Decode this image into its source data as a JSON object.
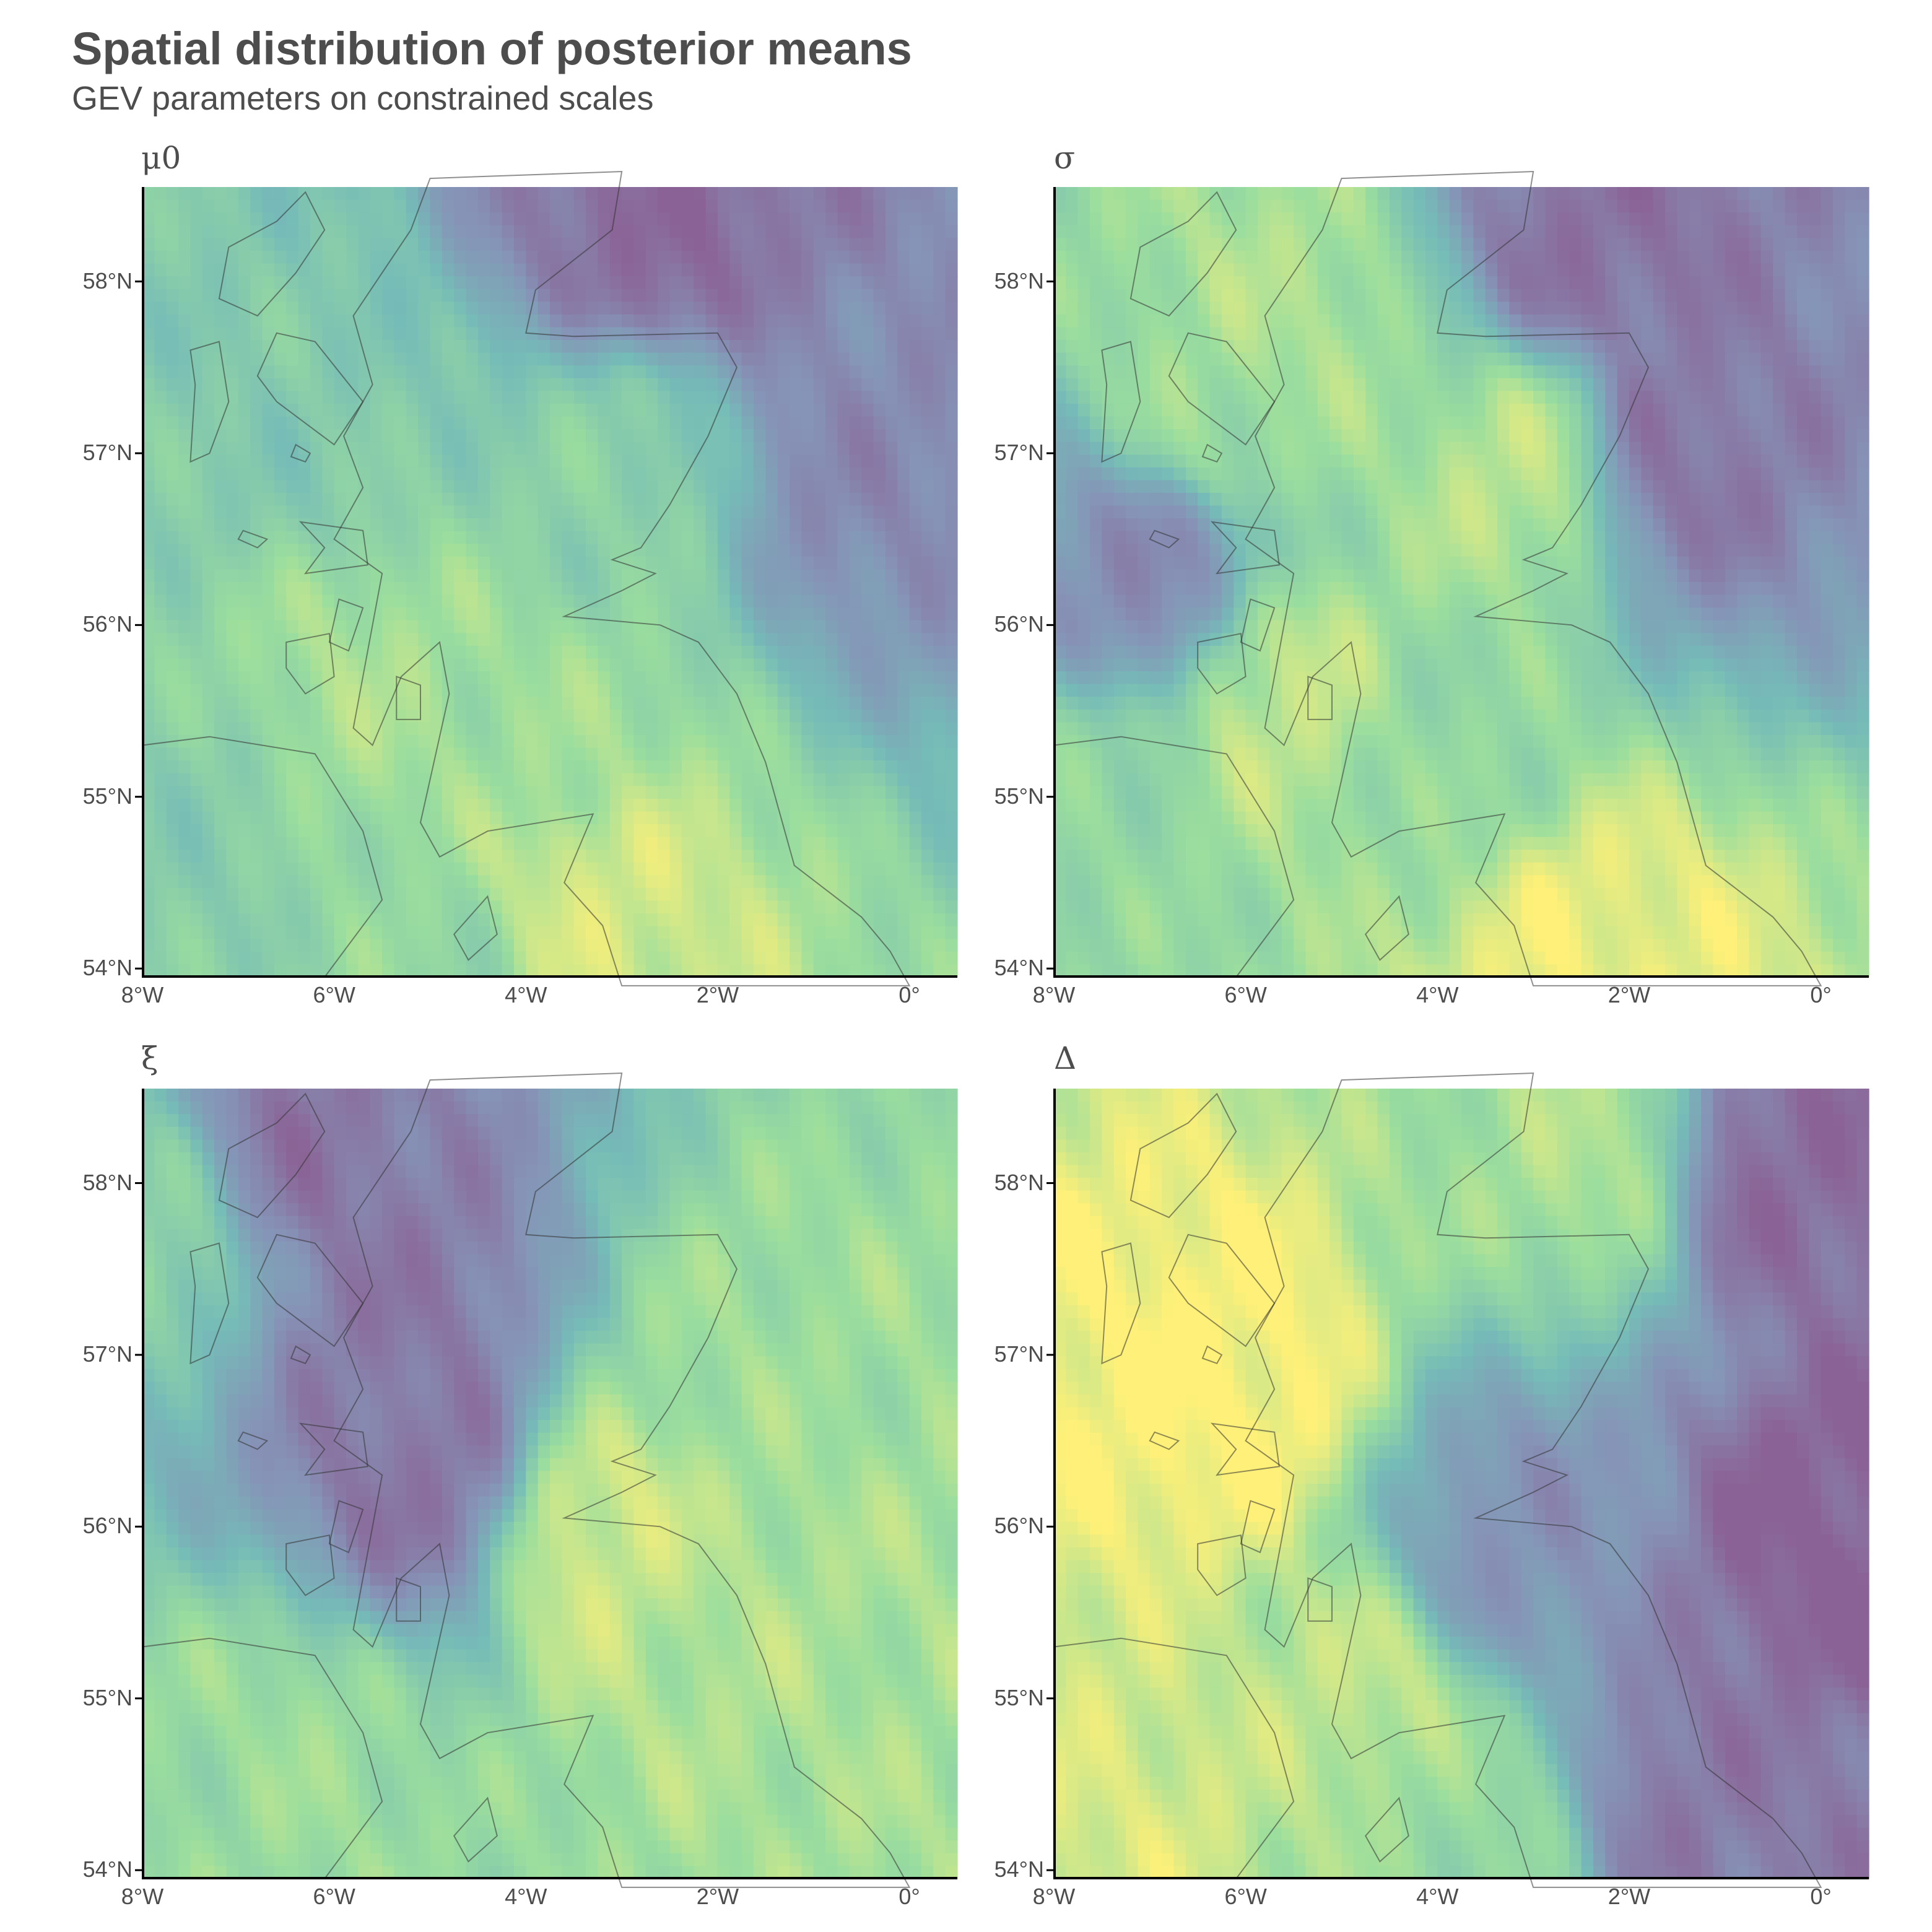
{
  "header": {
    "title": "Spatial distribution of posterior means",
    "subtitle": "GEV parameters on constrained scales"
  },
  "colors": {
    "palette": [
      "#440154",
      "#3b528b",
      "#21918c",
      "#5ec962",
      "#fde725"
    ],
    "coastline": "#333333",
    "axis": "#000000",
    "text": "#4d4d4d"
  },
  "axes": {
    "lat_ticks": [
      "58°N",
      "57°N",
      "56°N",
      "55°N",
      "54°N"
    ],
    "lon_ticks": [
      "8°W",
      "6°W",
      "4°W",
      "2°W",
      "0°"
    ]
  },
  "chart_data": [
    {
      "type": "heatmap",
      "panel": "mu0",
      "title": "μ0",
      "x_range": [
        -8.0,
        0.5
      ],
      "y_range": [
        53.95,
        58.55
      ],
      "value_pattern": "high (green-yellow) over southern uplands and western Highlands; low (purple) over North Sea, lowest NE of Scotland",
      "hotspots": [
        {
          "lon": -3.4,
          "lat": 54.4,
          "level": 0.9
        },
        {
          "lon": -5.7,
          "lat": 55.6,
          "level": 0.78
        },
        {
          "lon": -3.8,
          "lat": 55.3,
          "level": 0.75
        },
        {
          "lon": -3.0,
          "lat": 56.9,
          "level": 0.65
        },
        {
          "lon": -6.4,
          "lat": 57.2,
          "level": 0.6
        },
        {
          "lon": -7.5,
          "lat": 54.8,
          "level": 0.62
        },
        {
          "lon": -4.8,
          "lat": 54.1,
          "level": 0.7
        },
        {
          "lon": -2.6,
          "lat": 58.3,
          "level": 0.05
        },
        {
          "lon": -0.5,
          "lat": 57.0,
          "level": 0.2
        }
      ]
    },
    {
      "type": "heatmap",
      "panel": "sigma",
      "title": "σ",
      "x_range": [
        -8.0,
        0.5
      ],
      "y_range": [
        53.95,
        58.55
      ],
      "value_pattern": "high along western Highlands and Cairngorms, southern uplands; low over sea",
      "hotspots": [
        {
          "lon": -3.0,
          "lat": 56.9,
          "level": 0.85
        },
        {
          "lon": -5.7,
          "lat": 57.8,
          "level": 0.8
        },
        {
          "lon": -5.6,
          "lat": 55.6,
          "level": 0.85
        },
        {
          "lon": -2.5,
          "lat": 54.05,
          "level": 0.95
        },
        {
          "lon": -6.3,
          "lat": 57.3,
          "level": 0.75
        },
        {
          "lon": -3.9,
          "lat": 55.3,
          "level": 0.7
        },
        {
          "lon": -7.8,
          "lat": 54.9,
          "level": 0.7
        },
        {
          "lon": -2.3,
          "lat": 58.2,
          "level": 0.08
        },
        {
          "lon": -1.6,
          "lat": 57.0,
          "level": 0.1
        },
        {
          "lon": -7.0,
          "lat": 56.3,
          "level": 0.2
        }
      ]
    },
    {
      "type": "heatmap",
      "panel": "xi",
      "title": "ξ",
      "x_range": [
        -8.0,
        0.5
      ],
      "y_range": [
        53.95,
        58.55
      ],
      "value_pattern": "low (purple) over NW Highlands and islands; high (yellow) over south-east Scotland and northern England",
      "hotspots": [
        {
          "lon": -3.3,
          "lat": 55.95,
          "level": 0.9
        },
        {
          "lon": -2.0,
          "lat": 55.5,
          "level": 0.8
        },
        {
          "lon": -1.5,
          "lat": 57.0,
          "level": 0.75
        },
        {
          "lon": -0.1,
          "lat": 55.3,
          "level": 0.78
        },
        {
          "lon": -6.4,
          "lat": 54.6,
          "level": 0.75
        },
        {
          "lon": -7.2,
          "lat": 54.4,
          "level": 0.72
        },
        {
          "lon": -7.6,
          "lat": 57.8,
          "level": 0.7
        },
        {
          "lon": -5.0,
          "lat": 56.3,
          "level": 0.1
        },
        {
          "lon": -6.6,
          "lat": 58.1,
          "level": 0.08
        },
        {
          "lon": -5.4,
          "lat": 57.3,
          "level": 0.12
        }
      ]
    },
    {
      "type": "heatmap",
      "panel": "delta",
      "title": "Δ",
      "x_range": [
        -8.0,
        0.5
      ],
      "y_range": [
        53.95,
        58.55
      ],
      "value_pattern": "smooth field: high (yellow) over western Scotland and SW; low (purple) over North Sea east of Scotland and NE England",
      "hotspots": [
        {
          "lon": -6.3,
          "lat": 56.8,
          "level": 1.0
        },
        {
          "lon": -7.5,
          "lat": 54.2,
          "level": 0.9
        },
        {
          "lon": -4.7,
          "lat": 55.0,
          "level": 0.85
        },
        {
          "lon": -2.3,
          "lat": 58.2,
          "level": 0.8
        },
        {
          "lon": -3.7,
          "lat": 54.3,
          "level": 0.72
        },
        {
          "lon": 0.2,
          "lat": 55.9,
          "level": 0.0
        },
        {
          "lon": -0.5,
          "lat": 58.1,
          "level": 0.05
        },
        {
          "lon": -1.3,
          "lat": 54.5,
          "level": 0.12
        },
        {
          "lon": -3.2,
          "lat": 55.8,
          "level": 0.25
        }
      ]
    }
  ]
}
